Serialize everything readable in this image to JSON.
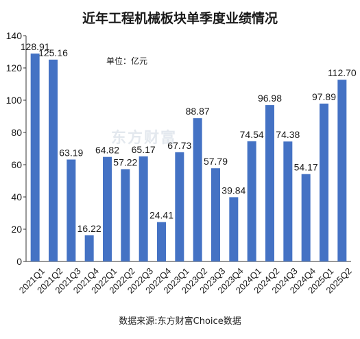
{
  "title": "近年工程机械板块单季度业绩情况",
  "unit": "单位：亿元",
  "watermark": "东方财富",
  "source": "数据来源:东方财富Choice数据",
  "colors": {
    "bar": "#4472c4",
    "axis": "#333333",
    "text": "#1a1a1a"
  },
  "chart_data": {
    "type": "bar",
    "title": "近年工程机械板块单季度业绩情况",
    "xlabel": "",
    "ylabel": "",
    "ylim": [
      0,
      140
    ],
    "yticks": [
      0,
      20,
      40,
      60,
      80,
      100,
      120,
      140
    ],
    "grid": false,
    "categories": [
      "2021Q1",
      "2021Q2",
      "2021Q3",
      "2021Q4",
      "2022Q1",
      "2022Q2",
      "2022Q3",
      "2022Q4",
      "2023Q1",
      "2023Q2",
      "2023Q3",
      "2023Q4",
      "2024Q1",
      "2024Q2",
      "2024Q3",
      "2024Q4",
      "2025Q1",
      "2025Q2"
    ],
    "values": [
      128.91,
      125.16,
      63.19,
      16.22,
      64.82,
      57.22,
      65.17,
      24.41,
      67.73,
      88.87,
      57.79,
      39.84,
      74.54,
      96.98,
      74.38,
      54.17,
      97.89,
      112.7
    ],
    "data_labels": [
      "128.91",
      "125.16",
      "63.19",
      "16.22",
      "64.82",
      "57.22",
      "65.17",
      "24.41",
      "67.73",
      "88.87",
      "57.79",
      "39.84",
      "74.54",
      "96.98",
      "74.38",
      "54.17",
      "97.89",
      "112.70"
    ]
  }
}
